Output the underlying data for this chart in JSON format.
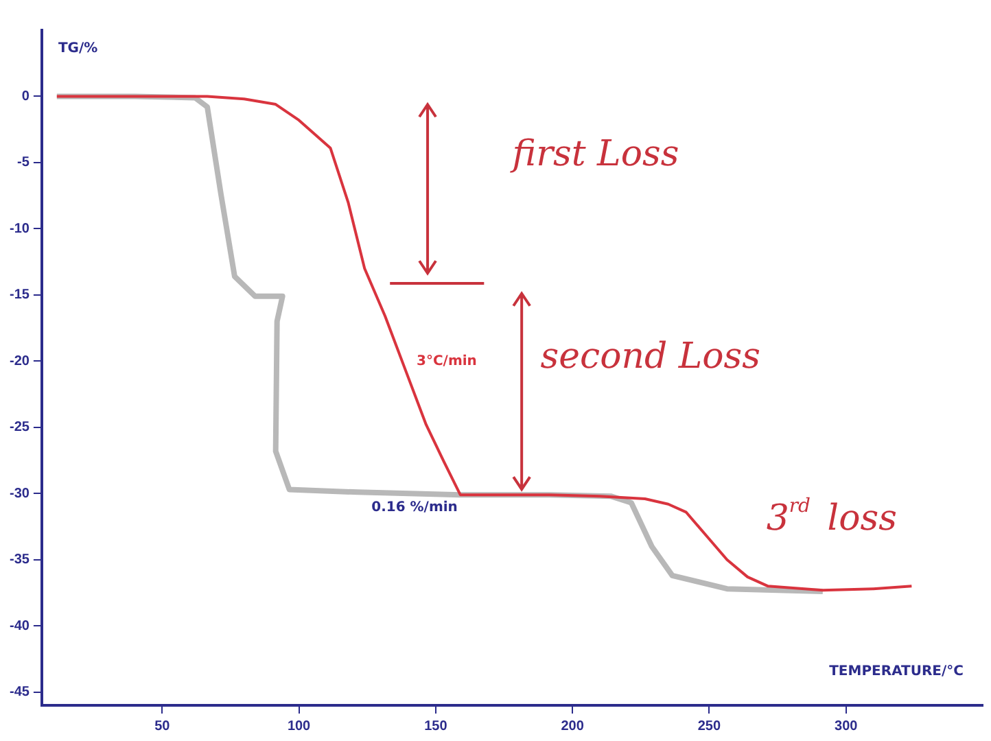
{
  "chart_data": {
    "type": "line",
    "xlabel": "TEMPERATURE/°C",
    "ylabel": "TG/%",
    "xlim": [
      6,
      350
    ],
    "ylim": [
      -46,
      5
    ],
    "xticks": [
      50,
      100,
      150,
      200,
      250,
      300
    ],
    "yticks": [
      0,
      -5,
      -10,
      -15,
      -20,
      -25,
      -30,
      -35,
      -40,
      -45
    ],
    "grid": false,
    "legend": false,
    "marker": "none",
    "line_style": "solid",
    "series": [
      {
        "name": "3°C/min",
        "color": "#d9343e",
        "x": [
          11.5,
          40,
          66.5,
          80,
          91.5,
          100,
          111.5,
          118,
          124,
          131.5,
          139,
          146.5,
          153,
          159,
          175,
          191.5,
          210,
          226.5,
          235,
          241.5,
          249,
          256.5,
          264,
          271.5,
          291.5,
          310,
          324
        ],
        "values": [
          0,
          0,
          0,
          -0.2,
          -0.6,
          -1.8,
          -3.9,
          -8,
          -13,
          -16.6,
          -20.7,
          -24.8,
          -27.6,
          -30.1,
          -30.1,
          -30.1,
          -30.2,
          -30.4,
          -30.8,
          -31.4,
          -33.2,
          -35,
          -36.3,
          -37,
          -37.3,
          -37.2,
          -37
        ]
      },
      {
        "name": "0.16 %/min",
        "color": "#b8b8b8",
        "x": [
          11.5,
          40,
          62,
          66.5,
          71.5,
          76.5,
          84,
          94,
          92,
          91.5,
          96.5,
          121.5,
          159,
          191.5,
          214,
          221.5,
          229,
          236.5,
          256.5,
          291.5
        ],
        "values": [
          0,
          0,
          -0.1,
          -0.8,
          -7.4,
          -13.6,
          -15.1,
          -15.1,
          -17,
          -26.8,
          -29.7,
          -29.9,
          -30.1,
          -30.1,
          -30.2,
          -30.7,
          -34,
          -36.2,
          -37.2,
          -37.4
        ]
      }
    ],
    "annotations": [
      "first Loss",
      "second Loss",
      "3$^{rd}$ loss"
    ]
  }
}
